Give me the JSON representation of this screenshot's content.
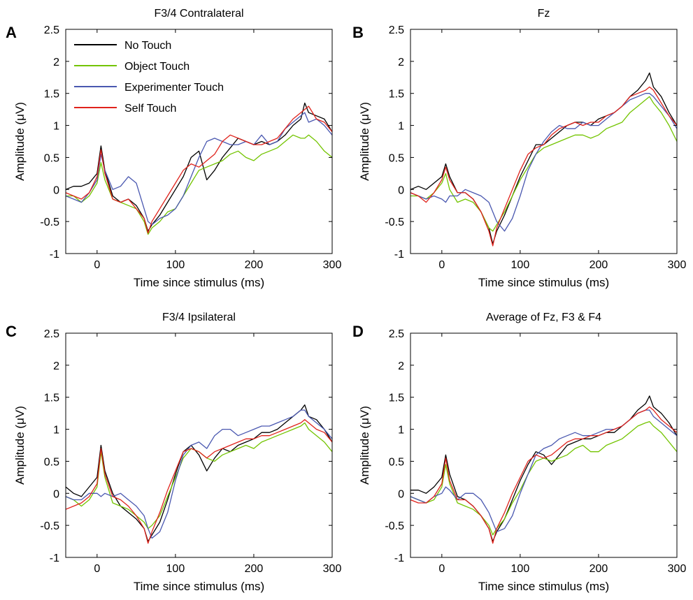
{
  "figure": {
    "colors": {
      "No Touch": "#000000",
      "Object Touch": "#73c400",
      "Experimenter Touch": "#4a58b0",
      "Self Touch": "#e0231c"
    }
  },
  "chart_data": [
    {
      "type": "line",
      "panel_label": "A",
      "title": "F3/4 Contralateral",
      "xlabel": "Time since stimulus (ms)",
      "ylabel": "Amplitude (μV)",
      "xlim": [
        -40,
        300
      ],
      "ylim": [
        -1,
        2.5
      ],
      "xticks": [
        0,
        100,
        200,
        300
      ],
      "yticks": [
        -1,
        -0.5,
        0,
        0.5,
        1,
        1.5,
        2,
        2.5
      ],
      "legend": {
        "position": "top-left",
        "entries": [
          "No Touch",
          "Object Touch",
          "Experimenter Touch",
          "Self Touch"
        ]
      },
      "x": [
        -40,
        -30,
        -20,
        -10,
        0,
        5,
        10,
        20,
        30,
        40,
        50,
        60,
        65,
        70,
        80,
        90,
        100,
        110,
        120,
        130,
        140,
        150,
        160,
        170,
        180,
        190,
        200,
        210,
        220,
        230,
        240,
        250,
        260,
        265,
        270,
        280,
        290,
        300
      ],
      "series": [
        {
          "name": "No Touch",
          "values": [
            0.0,
            0.05,
            0.05,
            0.1,
            0.25,
            0.68,
            0.3,
            -0.1,
            -0.2,
            -0.15,
            -0.25,
            -0.45,
            -0.65,
            -0.55,
            -0.4,
            -0.2,
            0.0,
            0.2,
            0.5,
            0.6,
            0.15,
            0.3,
            0.5,
            0.65,
            0.8,
            0.75,
            0.7,
            0.75,
            0.7,
            0.75,
            0.85,
            1.0,
            1.1,
            1.35,
            1.2,
            1.15,
            1.1,
            0.9
          ]
        },
        {
          "name": "Object Touch",
          "values": [
            -0.1,
            -0.1,
            -0.2,
            -0.1,
            0.1,
            0.42,
            0.15,
            -0.15,
            -0.2,
            -0.25,
            -0.3,
            -0.5,
            -0.7,
            -0.6,
            -0.5,
            -0.35,
            -0.3,
            -0.1,
            0.1,
            0.3,
            0.35,
            0.4,
            0.45,
            0.55,
            0.6,
            0.5,
            0.45,
            0.55,
            0.6,
            0.65,
            0.75,
            0.85,
            0.8,
            0.8,
            0.85,
            0.75,
            0.6,
            0.5
          ]
        },
        {
          "name": "Experimenter Touch",
          "values": [
            -0.1,
            -0.15,
            -0.2,
            -0.05,
            0.15,
            0.55,
            0.3,
            0.0,
            0.05,
            0.2,
            0.1,
            -0.3,
            -0.5,
            -0.55,
            -0.45,
            -0.4,
            -0.3,
            -0.1,
            0.2,
            0.5,
            0.75,
            0.8,
            0.75,
            0.7,
            0.7,
            0.75,
            0.7,
            0.85,
            0.7,
            0.75,
            0.95,
            1.05,
            1.15,
            1.2,
            1.05,
            1.1,
            1.0,
            0.85
          ]
        },
        {
          "name": "Self Touch",
          "values": [
            -0.05,
            -0.1,
            -0.15,
            -0.05,
            0.2,
            0.62,
            0.25,
            -0.15,
            -0.2,
            -0.15,
            -0.3,
            -0.45,
            -0.68,
            -0.5,
            -0.3,
            -0.1,
            0.1,
            0.3,
            0.4,
            0.35,
            0.45,
            0.55,
            0.75,
            0.85,
            0.8,
            0.75,
            0.7,
            0.7,
            0.75,
            0.8,
            0.95,
            1.1,
            1.2,
            1.25,
            1.3,
            1.1,
            1.05,
            0.9
          ]
        }
      ]
    },
    {
      "type": "line",
      "panel_label": "B",
      "title": "Fz",
      "xlabel": "Time since stimulus (ms)",
      "ylabel": "Amplitude (μV)",
      "xlim": [
        -40,
        300
      ],
      "ylim": [
        -1,
        2.5
      ],
      "xticks": [
        0,
        100,
        200,
        300
      ],
      "yticks": [
        -1,
        -0.5,
        0,
        0.5,
        1,
        1.5,
        2,
        2.5
      ],
      "x": [
        -40,
        -30,
        -20,
        -10,
        0,
        5,
        10,
        20,
        30,
        40,
        50,
        60,
        65,
        70,
        80,
        90,
        100,
        110,
        120,
        130,
        140,
        150,
        160,
        170,
        180,
        190,
        200,
        210,
        220,
        230,
        240,
        250,
        260,
        265,
        270,
        280,
        290,
        300
      ],
      "series": [
        {
          "name": "No Touch",
          "values": [
            0.0,
            0.05,
            0.0,
            0.1,
            0.2,
            0.4,
            0.2,
            -0.05,
            -0.05,
            -0.15,
            -0.35,
            -0.6,
            -0.85,
            -0.65,
            -0.4,
            -0.1,
            0.2,
            0.45,
            0.7,
            0.7,
            0.8,
            0.9,
            1.0,
            1.05,
            1.05,
            1.0,
            1.1,
            1.15,
            1.2,
            1.3,
            1.45,
            1.55,
            1.7,
            1.82,
            1.6,
            1.45,
            1.2,
            1.0
          ]
        },
        {
          "name": "Object Touch",
          "values": [
            -0.1,
            -0.1,
            -0.15,
            -0.05,
            0.1,
            0.25,
            0.0,
            -0.2,
            -0.15,
            -0.2,
            -0.35,
            -0.6,
            -0.65,
            -0.55,
            -0.35,
            -0.1,
            0.15,
            0.35,
            0.55,
            0.65,
            0.7,
            0.75,
            0.8,
            0.85,
            0.85,
            0.8,
            0.85,
            0.95,
            1.0,
            1.05,
            1.2,
            1.3,
            1.4,
            1.45,
            1.35,
            1.2,
            1.0,
            0.75
          ]
        },
        {
          "name": "Experimenter Touch",
          "values": [
            -0.05,
            -0.1,
            -0.15,
            -0.1,
            -0.15,
            -0.2,
            -0.1,
            -0.1,
            0.0,
            -0.05,
            -0.1,
            -0.2,
            -0.35,
            -0.5,
            -0.65,
            -0.45,
            -0.1,
            0.3,
            0.55,
            0.75,
            0.9,
            1.0,
            0.95,
            0.95,
            1.05,
            1.0,
            1.0,
            1.1,
            1.2,
            1.3,
            1.4,
            1.45,
            1.5,
            1.5,
            1.45,
            1.3,
            1.15,
            0.95
          ]
        },
        {
          "name": "Self Touch",
          "values": [
            -0.05,
            -0.1,
            -0.2,
            -0.05,
            0.15,
            0.35,
            0.15,
            -0.05,
            -0.05,
            -0.15,
            -0.35,
            -0.65,
            -0.88,
            -0.6,
            -0.3,
            0.0,
            0.3,
            0.55,
            0.65,
            0.7,
            0.85,
            0.95,
            1.0,
            1.05,
            1.0,
            1.05,
            1.05,
            1.15,
            1.2,
            1.3,
            1.45,
            1.5,
            1.55,
            1.6,
            1.55,
            1.35,
            1.15,
            1.0
          ]
        }
      ]
    },
    {
      "type": "line",
      "panel_label": "C",
      "title": "F3/4 Ipsilateral",
      "xlabel": "Time since stimulus (ms)",
      "ylabel": "Amplitude (μV)",
      "xlim": [
        -40,
        300
      ],
      "ylim": [
        -1,
        2.5
      ],
      "xticks": [
        0,
        100,
        200,
        300
      ],
      "yticks": [
        -1,
        -0.5,
        0,
        0.5,
        1,
        1.5,
        2,
        2.5
      ],
      "x": [
        -40,
        -30,
        -20,
        -10,
        0,
        5,
        10,
        20,
        30,
        40,
        50,
        60,
        65,
        70,
        80,
        90,
        100,
        110,
        120,
        130,
        140,
        150,
        160,
        170,
        180,
        190,
        200,
        210,
        220,
        230,
        240,
        250,
        260,
        265,
        270,
        280,
        290,
        300
      ],
      "series": [
        {
          "name": "No Touch",
          "values": [
            0.1,
            0.0,
            -0.05,
            0.1,
            0.25,
            0.75,
            0.35,
            0.0,
            -0.2,
            -0.3,
            -0.4,
            -0.55,
            -0.75,
            -0.65,
            -0.45,
            -0.1,
            0.3,
            0.65,
            0.75,
            0.6,
            0.35,
            0.55,
            0.7,
            0.65,
            0.75,
            0.8,
            0.85,
            0.95,
            0.95,
            1.0,
            1.1,
            1.2,
            1.3,
            1.38,
            1.2,
            1.15,
            1.0,
            0.8
          ]
        },
        {
          "name": "Object Touch",
          "values": [
            -0.05,
            -0.1,
            -0.2,
            -0.1,
            0.1,
            0.65,
            0.25,
            -0.15,
            -0.2,
            -0.25,
            -0.35,
            -0.45,
            -0.55,
            -0.5,
            -0.35,
            -0.05,
            0.25,
            0.55,
            0.7,
            0.65,
            0.55,
            0.5,
            0.6,
            0.65,
            0.7,
            0.75,
            0.7,
            0.8,
            0.85,
            0.9,
            0.95,
            1.0,
            1.05,
            1.1,
            1.0,
            0.9,
            0.8,
            0.65
          ]
        },
        {
          "name": "Experimenter Touch",
          "values": [
            -0.05,
            -0.1,
            -0.1,
            0.0,
            0.0,
            -0.05,
            0.0,
            -0.05,
            0.0,
            -0.1,
            -0.2,
            -0.35,
            -0.55,
            -0.7,
            -0.6,
            -0.3,
            0.2,
            0.6,
            0.75,
            0.8,
            0.7,
            0.9,
            1.0,
            1.0,
            0.9,
            0.95,
            1.0,
            1.05,
            1.05,
            1.1,
            1.15,
            1.2,
            1.3,
            1.3,
            1.2,
            1.1,
            1.0,
            0.85
          ]
        },
        {
          "name": "Self Touch",
          "values": [
            -0.25,
            -0.2,
            -0.15,
            -0.05,
            0.15,
            0.7,
            0.3,
            -0.05,
            -0.1,
            -0.2,
            -0.35,
            -0.55,
            -0.78,
            -0.6,
            -0.3,
            0.05,
            0.35,
            0.65,
            0.7,
            0.65,
            0.55,
            0.65,
            0.7,
            0.75,
            0.8,
            0.85,
            0.85,
            0.9,
            0.9,
            0.95,
            1.0,
            1.05,
            1.1,
            1.15,
            1.1,
            1.0,
            0.95,
            0.8
          ]
        }
      ]
    },
    {
      "type": "line",
      "panel_label": "D",
      "title": "Average of Fz, F3 & F4",
      "xlabel": "Time since stimulus (ms)",
      "ylabel": "Amplitude (μV)",
      "xlim": [
        -40,
        300
      ],
      "ylim": [
        -1,
        2.5
      ],
      "xticks": [
        0,
        100,
        200,
        300
      ],
      "yticks": [
        -1,
        -0.5,
        0,
        0.5,
        1,
        1.5,
        2,
        2.5
      ],
      "x": [
        -40,
        -30,
        -20,
        -10,
        0,
        5,
        10,
        20,
        30,
        40,
        50,
        60,
        65,
        70,
        80,
        90,
        100,
        110,
        120,
        130,
        140,
        150,
        160,
        170,
        180,
        190,
        200,
        210,
        220,
        230,
        240,
        250,
        260,
        265,
        270,
        280,
        290,
        300
      ],
      "series": [
        {
          "name": "No Touch",
          "values": [
            0.05,
            0.05,
            0.0,
            0.1,
            0.25,
            0.6,
            0.3,
            -0.05,
            -0.1,
            -0.2,
            -0.35,
            -0.55,
            -0.75,
            -0.6,
            -0.4,
            -0.1,
            0.2,
            0.45,
            0.65,
            0.6,
            0.45,
            0.6,
            0.75,
            0.8,
            0.85,
            0.85,
            0.9,
            0.95,
            0.95,
            1.05,
            1.15,
            1.3,
            1.4,
            1.52,
            1.35,
            1.25,
            1.1,
            0.9
          ]
        },
        {
          "name": "Object Touch",
          "values": [
            -0.05,
            -0.1,
            -0.15,
            -0.1,
            0.1,
            0.45,
            0.15,
            -0.15,
            -0.2,
            -0.25,
            -0.35,
            -0.5,
            -0.65,
            -0.55,
            -0.4,
            -0.15,
            0.05,
            0.3,
            0.5,
            0.55,
            0.5,
            0.55,
            0.6,
            0.7,
            0.75,
            0.65,
            0.65,
            0.75,
            0.8,
            0.85,
            0.95,
            1.05,
            1.1,
            1.12,
            1.05,
            0.95,
            0.8,
            0.65
          ]
        },
        {
          "name": "Experimenter Touch",
          "values": [
            -0.05,
            -0.1,
            -0.15,
            -0.05,
            0.0,
            0.1,
            0.05,
            -0.1,
            0.0,
            0.0,
            -0.1,
            -0.3,
            -0.45,
            -0.6,
            -0.55,
            -0.35,
            0.0,
            0.3,
            0.6,
            0.7,
            0.75,
            0.85,
            0.9,
            0.95,
            0.9,
            0.9,
            0.95,
            1.0,
            1.0,
            1.05,
            1.15,
            1.25,
            1.3,
            1.3,
            1.2,
            1.1,
            1.0,
            0.9
          ]
        },
        {
          "name": "Self Touch",
          "values": [
            -0.1,
            -0.15,
            -0.15,
            -0.05,
            0.15,
            0.55,
            0.2,
            -0.1,
            -0.1,
            -0.2,
            -0.35,
            -0.55,
            -0.78,
            -0.55,
            -0.3,
            0.0,
            0.25,
            0.5,
            0.6,
            0.55,
            0.6,
            0.7,
            0.8,
            0.85,
            0.85,
            0.9,
            0.9,
            0.95,
            1.0,
            1.05,
            1.15,
            1.25,
            1.3,
            1.35,
            1.3,
            1.15,
            1.05,
            0.95
          ]
        }
      ]
    }
  ]
}
